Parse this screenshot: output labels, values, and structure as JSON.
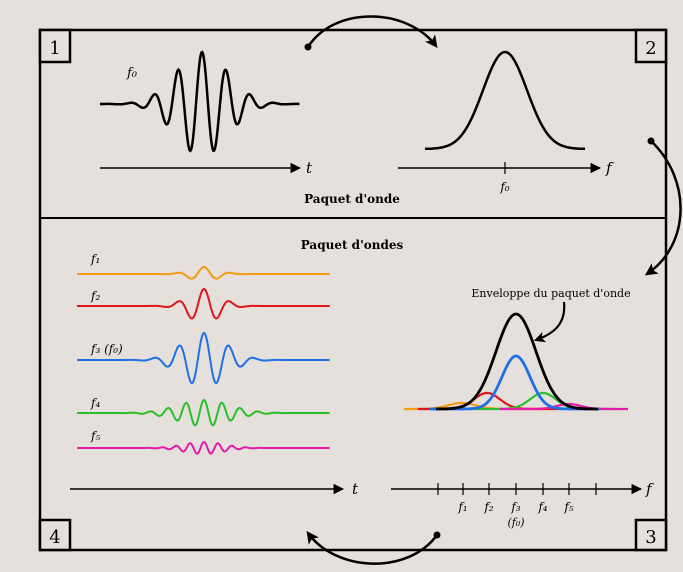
{
  "corners": {
    "c1": "1",
    "c2": "2",
    "c3": "3",
    "c4": "4"
  },
  "top": {
    "wave_label": "f₀",
    "time_axis_label": "t",
    "freq_axis_label": "f",
    "freq_tick_label": "f₀",
    "caption": "Paquet d'onde"
  },
  "bottom": {
    "title": "Paquet d'ondes",
    "envelope_label": "Enveloppe du paquet d'onde",
    "time_axis_label": "t",
    "freq_axis_label": "f",
    "waves": [
      {
        "label": "f₁",
        "color": "#f39c12"
      },
      {
        "label": "f₂",
        "color": "#e0161b"
      },
      {
        "label": "f₃ (f₀)",
        "color": "#1f6fe5"
      },
      {
        "label": "f₄",
        "color": "#2bbf2b"
      },
      {
        "label": "f₅",
        "color": "#e61aa8"
      }
    ],
    "freq_ticks": [
      "f₁",
      "f₂",
      "f₃",
      "f₄",
      "f₅"
    ],
    "freq_tick_sub": "(f₀)"
  },
  "colors": {
    "background": "#e5e0dc",
    "ink": "#000000",
    "f1": "#f39c12",
    "f2": "#e0161b",
    "f3": "#1f6fe5",
    "f4": "#2bbf2b",
    "f5": "#e61aa8"
  }
}
